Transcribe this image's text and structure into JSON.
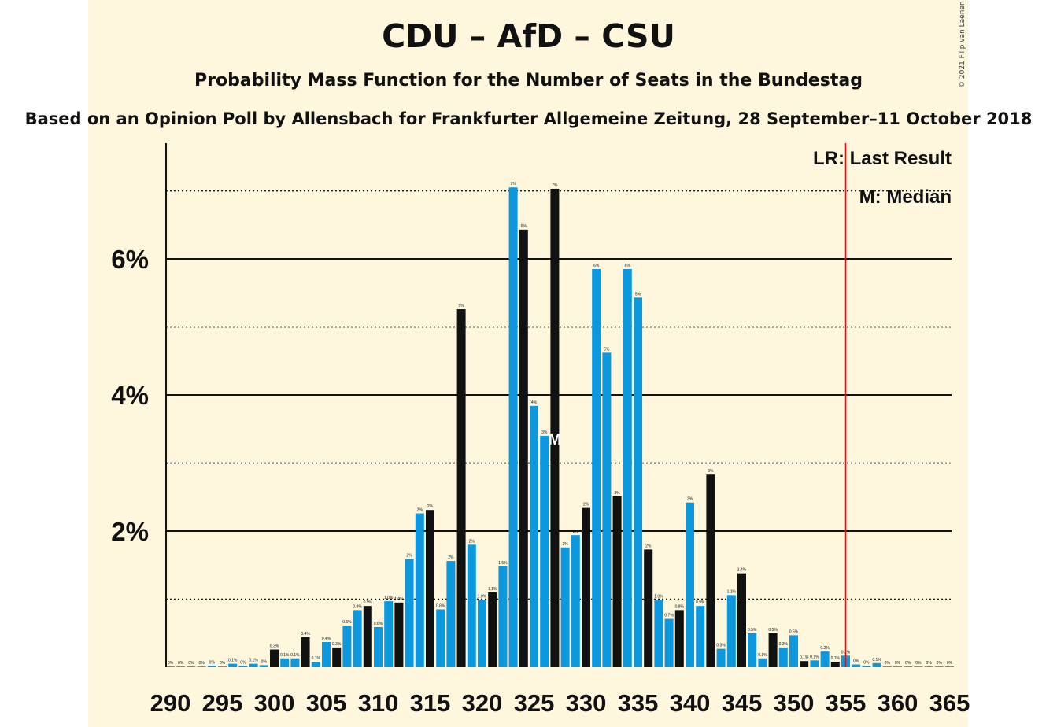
{
  "chart_data": {
    "type": "bar",
    "title": "CDU – AfD – CSU",
    "subtitle": "Probability Mass Function for the Number of Seats in the Bundestag",
    "source_line": "Based on an Opinion Poll by Allensbach for Frankfurter Allgemeine Zeitung, 28 September–11 October 2018",
    "copyright": "© 2021 Filip van Laenen",
    "legend": [
      "LR: Last Result",
      "M: Median"
    ],
    "legend_position": "top-right",
    "xlabel": "",
    "ylabel": "",
    "xlim": [
      290,
      365
    ],
    "ylim": [
      0,
      7.7
    ],
    "y_ticks": [
      {
        "value": 2,
        "label": "2%"
      },
      {
        "value": 4,
        "label": "4%"
      },
      {
        "value": 6,
        "label": "6%"
      }
    ],
    "y_minor_gridlines": [
      1,
      3,
      5,
      7
    ],
    "x_ticks": [
      290,
      295,
      300,
      305,
      310,
      315,
      320,
      325,
      330,
      335,
      340,
      345,
      350,
      355,
      360,
      365
    ],
    "last_result": 355,
    "median": 327,
    "median_marker": "M",
    "colors": {
      "blue": "#0c98df",
      "black": "#111111",
      "last_result_line": "#e01010",
      "background": "#fef6dd"
    },
    "bars": [
      {
        "seat": 290,
        "value": 0.01,
        "label": "0%"
      },
      {
        "seat": 291,
        "value": 0.01,
        "label": "0%"
      },
      {
        "seat": 292,
        "value": 0.01,
        "label": "0%"
      },
      {
        "seat": 293,
        "value": 0.01,
        "label": "0%"
      },
      {
        "seat": 294,
        "value": 0.02,
        "label": "0%"
      },
      {
        "seat": 295,
        "value": 0.01,
        "label": "0%"
      },
      {
        "seat": 296,
        "value": 0.05,
        "label": "0.1%"
      },
      {
        "seat": 297,
        "value": 0.02,
        "label": "0%"
      },
      {
        "seat": 298,
        "value": 0.05,
        "label": "0.1%"
      },
      {
        "seat": 299,
        "value": 0.03,
        "label": "0%"
      },
      {
        "seat": 300,
        "value": 0.26,
        "label": "0.3%"
      },
      {
        "seat": 301,
        "value": 0.13,
        "label": "0.1%"
      },
      {
        "seat": 302,
        "value": 0.13,
        "label": "0.1%"
      },
      {
        "seat": 303,
        "value": 0.44,
        "label": "0.4%"
      },
      {
        "seat": 304,
        "value": 0.08,
        "label": "0.1%"
      },
      {
        "seat": 305,
        "value": 0.37,
        "label": "0.4%"
      },
      {
        "seat": 306,
        "value": 0.29,
        "label": "0.3%"
      },
      {
        "seat": 307,
        "value": 0.61,
        "label": "0.6%"
      },
      {
        "seat": 308,
        "value": 0.84,
        "label": "0.8%"
      },
      {
        "seat": 309,
        "value": 0.9,
        "label": "0.9%"
      },
      {
        "seat": 310,
        "value": 0.59,
        "label": "0.6%"
      },
      {
        "seat": 311,
        "value": 0.97,
        "label": "1.0%"
      },
      {
        "seat": 312,
        "value": 0.95,
        "label": "1.0%"
      },
      {
        "seat": 313,
        "value": 1.59,
        "label": "2%"
      },
      {
        "seat": 314,
        "value": 2.26,
        "label": "2%"
      },
      {
        "seat": 315,
        "value": 2.31,
        "label": "2%"
      },
      {
        "seat": 316,
        "value": 0.85,
        "label": "0.8%"
      },
      {
        "seat": 317,
        "value": 1.56,
        "label": "2%"
      },
      {
        "seat": 318,
        "value": 5.26,
        "label": "5%"
      },
      {
        "seat": 319,
        "value": 1.8,
        "label": "2%"
      },
      {
        "seat": 320,
        "value": 0.99,
        "label": "1.0%"
      },
      {
        "seat": 321,
        "value": 1.1,
        "label": "1.1%"
      },
      {
        "seat": 322,
        "value": 1.48,
        "label": "1.5%"
      },
      {
        "seat": 323,
        "value": 7.05,
        "label": "7%"
      },
      {
        "seat": 324,
        "value": 6.43,
        "label": "6%"
      },
      {
        "seat": 325,
        "value": 3.84,
        "label": "4%"
      },
      {
        "seat": 326,
        "value": 3.4,
        "label": "3%"
      },
      {
        "seat": 327,
        "value": 7.03,
        "label": "7%"
      },
      {
        "seat": 328,
        "value": 1.76,
        "label": "2%"
      },
      {
        "seat": 329,
        "value": 1.94,
        "label": "2%"
      },
      {
        "seat": 330,
        "value": 2.34,
        "label": "2%"
      },
      {
        "seat": 331,
        "value": 5.85,
        "label": "6%"
      },
      {
        "seat": 332,
        "value": 4.62,
        "label": "5%"
      },
      {
        "seat": 333,
        "value": 2.51,
        "label": "3%"
      },
      {
        "seat": 334,
        "value": 5.85,
        "label": "6%"
      },
      {
        "seat": 335,
        "value": 5.43,
        "label": "5%"
      },
      {
        "seat": 336,
        "value": 1.73,
        "label": "2%"
      },
      {
        "seat": 337,
        "value": 0.99,
        "label": "1.0%"
      },
      {
        "seat": 338,
        "value": 0.71,
        "label": "0.7%"
      },
      {
        "seat": 339,
        "value": 0.84,
        "label": "0.8%"
      },
      {
        "seat": 340,
        "value": 2.42,
        "label": "2%"
      },
      {
        "seat": 341,
        "value": 0.9,
        "label": "0.9%"
      },
      {
        "seat": 342,
        "value": 2.83,
        "label": "3%"
      },
      {
        "seat": 343,
        "value": 0.27,
        "label": "0.3%"
      },
      {
        "seat": 344,
        "value": 1.06,
        "label": "1.1%"
      },
      {
        "seat": 345,
        "value": 1.38,
        "label": "1.4%"
      },
      {
        "seat": 346,
        "value": 0.5,
        "label": "0.5%"
      },
      {
        "seat": 347,
        "value": 0.13,
        "label": "0.1%"
      },
      {
        "seat": 348,
        "value": 0.5,
        "label": "0.5%"
      },
      {
        "seat": 349,
        "value": 0.29,
        "label": "0.3%"
      },
      {
        "seat": 350,
        "value": 0.47,
        "label": "0.5%"
      },
      {
        "seat": 351,
        "value": 0.09,
        "label": "0.1%"
      },
      {
        "seat": 352,
        "value": 0.1,
        "label": "0.1%"
      },
      {
        "seat": 353,
        "value": 0.23,
        "label": "0.2%"
      },
      {
        "seat": 354,
        "value": 0.08,
        "label": "0.1%"
      },
      {
        "seat": 355,
        "value": 0.17,
        "label": "0.2%"
      },
      {
        "seat": 356,
        "value": 0.04,
        "label": "0%"
      },
      {
        "seat": 357,
        "value": 0.02,
        "label": "0%"
      },
      {
        "seat": 358,
        "value": 0.06,
        "label": "0.1%"
      },
      {
        "seat": 359,
        "value": 0.01,
        "label": "0%"
      },
      {
        "seat": 360,
        "value": 0.01,
        "label": "0%"
      },
      {
        "seat": 361,
        "value": 0.01,
        "label": "0%"
      },
      {
        "seat": 362,
        "value": 0.01,
        "label": "0%"
      },
      {
        "seat": 363,
        "value": 0.01,
        "label": "0%"
      },
      {
        "seat": 364,
        "value": 0.01,
        "label": "0%"
      },
      {
        "seat": 365,
        "value": 0.01,
        "label": "0%"
      }
    ],
    "black_bar_seats": [
      300,
      303,
      306,
      309,
      312,
      315,
      318,
      321,
      324,
      327,
      330,
      333,
      336,
      339,
      342,
      345,
      348,
      351,
      354
    ]
  }
}
